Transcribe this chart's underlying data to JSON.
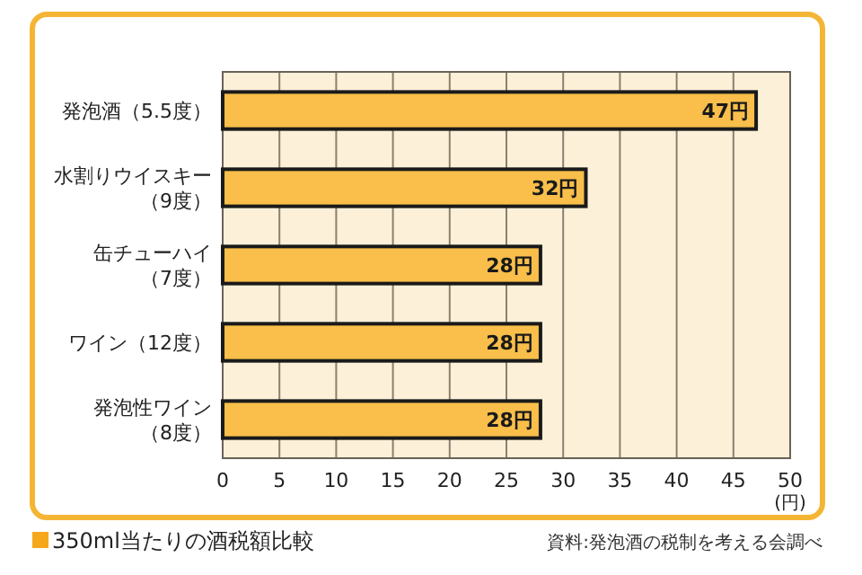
{
  "chart_data": {
    "type": "bar",
    "orientation": "horizontal",
    "title": "350ml当たりの酒税額比較",
    "xlabel": "(円)",
    "categories": [
      "発泡酒（5.5度）",
      "水割りウイスキー（9度）",
      "缶チューハイ（7度）",
      "ワイン（12度）",
      "発泡性ワイン（8度）"
    ],
    "values": [
      47,
      32,
      28,
      28,
      28
    ],
    "value_labels": [
      "47円",
      "32円",
      "28円",
      "28円",
      "28円"
    ],
    "color": "#f9bf4a",
    "xlim": [
      0,
      50
    ],
    "xticks": [
      0,
      5,
      10,
      15,
      20,
      25,
      30,
      35,
      40,
      45,
      50
    ],
    "grid": "x",
    "annotations": [
      "資料:発泡酒の税制を考える会調べ"
    ]
  }
}
